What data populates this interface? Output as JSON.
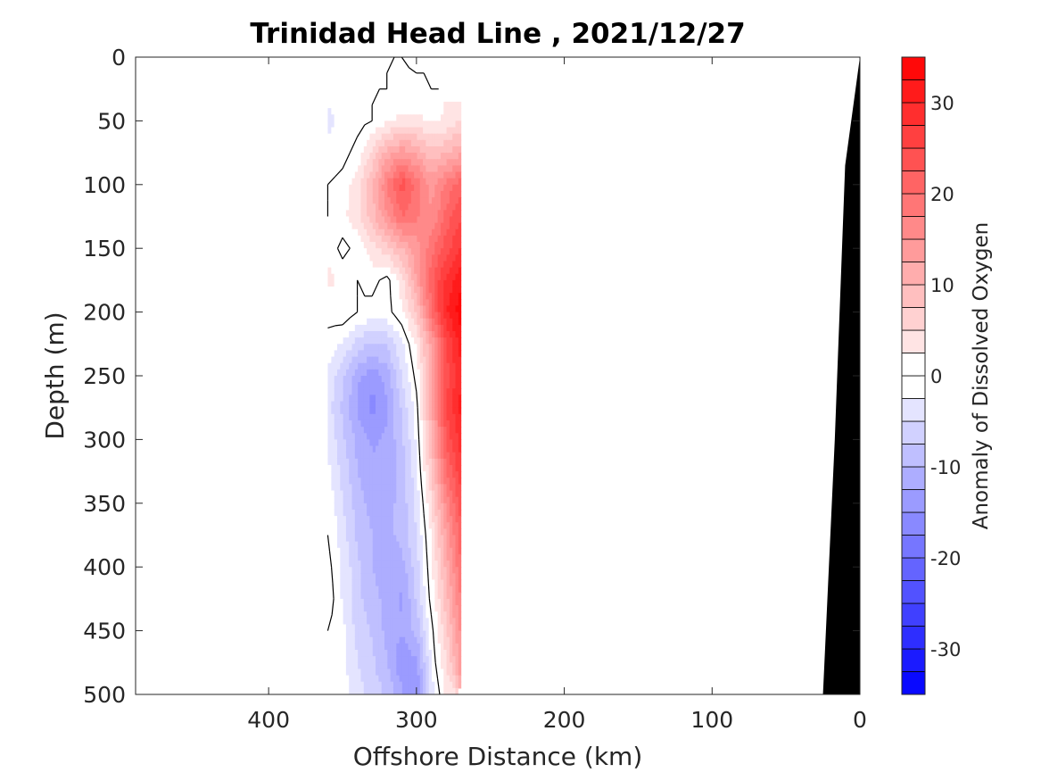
{
  "chart_data": {
    "type": "heatmap",
    "title": "Trinidad Head Line , 2021/12/27",
    "xlabel": "Offshore Distance (km)",
    "ylabel": "Depth (m)",
    "xlim": [
      490,
      0
    ],
    "ylim": [
      0,
      500
    ],
    "x_reversed": true,
    "y_reversed": true,
    "x_ticks": [
      400,
      300,
      200,
      100,
      0
    ],
    "y_ticks": [
      0,
      50,
      100,
      150,
      200,
      250,
      300,
      350,
      400,
      450,
      500
    ],
    "colorbar": {
      "label": "Anomaly of Dissolved Oxygen",
      "range": [
        -35,
        35
      ],
      "level_step": 2.5,
      "ticks": [
        30,
        20,
        10,
        0,
        -10,
        -20,
        -30
      ],
      "negative_color": "#0000ff",
      "positive_color": "#ff0000"
    },
    "distances_km": [
      270,
      280,
      290,
      300,
      310,
      320,
      330,
      340,
      350,
      360
    ],
    "depths_m": [
      0,
      25,
      50,
      75,
      100,
      125,
      150,
      175,
      200,
      225,
      250,
      275,
      300,
      325,
      350,
      375,
      400,
      425,
      450,
      475,
      500
    ],
    "anomaly": [
      [
        null,
        null,
        null,
        -1,
        0,
        0,
        0,
        0,
        0,
        -1
      ],
      [
        null,
        null,
        0,
        1,
        1,
        0,
        0,
        0,
        0,
        -2
      ],
      [
        5,
        3,
        2,
        3,
        3,
        2,
        0,
        -1,
        -2,
        -3
      ],
      [
        12,
        10,
        8,
        12,
        14,
        11,
        6,
        1,
        -1,
        -2
      ],
      [
        22,
        18,
        14,
        19,
        24,
        18,
        10,
        4,
        1,
        0
      ],
      [
        25,
        21,
        15,
        18,
        20,
        15,
        9,
        4,
        2,
        0
      ],
      [
        28,
        24,
        19,
        14,
        10,
        7,
        4,
        1,
        -1,
        2
      ],
      [
        32,
        28,
        22,
        13,
        4,
        -1,
        1,
        0,
        2,
        3
      ],
      [
        34,
        30,
        20,
        8,
        2,
        -1,
        -1,
        0,
        2,
        1
      ],
      [
        31,
        25,
        13,
        3,
        -3,
        -7,
        -8,
        -6,
        -3,
        -1
      ],
      [
        30,
        24,
        12,
        1,
        -5,
        -11,
        -14,
        -12,
        -7,
        -3
      ],
      [
        31,
        25,
        12,
        -1,
        -7,
        -13,
        -16,
        -13,
        -8,
        -4
      ],
      [
        29,
        23,
        10,
        -2,
        -8,
        -12,
        -13,
        -11,
        -7,
        -3
      ],
      [
        27,
        20,
        8,
        -3,
        -9,
        -12,
        -12,
        -10,
        -6,
        -2
      ],
      [
        24,
        16,
        5,
        -4,
        -9,
        -11,
        -11,
        -9,
        -5,
        -1
      ],
      [
        22,
        13,
        3,
        -5,
        -9,
        -11,
        -10,
        -8,
        -4,
        0
      ],
      [
        20,
        11,
        2,
        -6,
        -11,
        -12,
        -10,
        -7,
        -3,
        1
      ],
      [
        18,
        9,
        1,
        -7,
        -13,
        -11,
        -9,
        -7,
        -3,
        2
      ],
      [
        16,
        7,
        -1,
        -9,
        -12,
        -11,
        -8,
        -6,
        -2,
        0
      ],
      [
        14,
        5,
        -2,
        -13,
        -15,
        -10,
        -7,
        -5,
        -2,
        -1
      ],
      [
        null,
        3,
        -4,
        -15,
        -12,
        -8,
        -6,
        -4,
        -1,
        null
      ]
    ],
    "shelf_bottom": {
      "distance_km": [
        0,
        10,
        17,
        25,
        26
      ],
      "depth_m": [
        0,
        85,
        300,
        500,
        500
      ]
    }
  }
}
